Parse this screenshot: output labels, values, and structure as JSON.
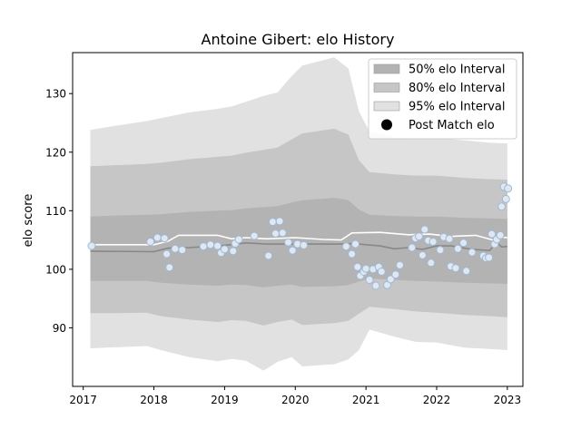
{
  "chart_data": {
    "type": "line",
    "title": "Antoine Gibert: elo History",
    "xlabel": "",
    "ylabel": "elo score",
    "xlim": [
      2016.85,
      2023.22
    ],
    "ylim": [
      80,
      137
    ],
    "x_ticks": [
      2017,
      2018,
      2019,
      2020,
      2021,
      2022,
      2023
    ],
    "x_tick_labels": [
      "2017",
      "2018",
      "2019",
      "2020",
      "2021",
      "2022",
      "2023"
    ],
    "y_ticks": [
      90,
      100,
      110,
      120,
      130
    ],
    "y_tick_labels": [
      "90",
      "100",
      "110",
      "120",
      "130"
    ],
    "grid": false,
    "legend_position": "top-right",
    "legend": [
      {
        "label": "50% elo Interval",
        "kind": "band",
        "color": "#b3b3b3"
      },
      {
        "label": "80% elo Interval",
        "kind": "band",
        "color": "#c6c6c6"
      },
      {
        "label": "95% elo Interval",
        "kind": "band",
        "color": "#e1e1e1"
      },
      {
        "label": "Post Match elo",
        "kind": "marker",
        "color": "#000000"
      }
    ],
    "colors": {
      "band50": "#b3b3b3",
      "band80": "#c6c6c6",
      "band95": "#e1e1e1",
      "mean_line": "#888888",
      "upper_line": "#ffffff",
      "marker_fill": "#dfe8f2",
      "marker_edge": "#9fb8d4"
    },
    "band95": [
      {
        "x": 2017.1,
        "lo": 86.5,
        "hi": 123.8
      },
      {
        "x": 2017.5,
        "lo": 86.7,
        "hi": 124.6
      },
      {
        "x": 2017.9,
        "lo": 86.9,
        "hi": 125.3
      },
      {
        "x": 2018.1,
        "lo": 86.2,
        "hi": 125.8
      },
      {
        "x": 2018.5,
        "lo": 85.0,
        "hi": 126.8
      },
      {
        "x": 2018.9,
        "lo": 84.3,
        "hi": 127.4
      },
      {
        "x": 2019.1,
        "lo": 84.7,
        "hi": 127.8
      },
      {
        "x": 2019.3,
        "lo": 84.4,
        "hi": 128.6
      },
      {
        "x": 2019.55,
        "lo": 82.7,
        "hi": 129.6
      },
      {
        "x": 2019.75,
        "lo": 84.2,
        "hi": 130.2
      },
      {
        "x": 2019.95,
        "lo": 85.0,
        "hi": 133.0
      },
      {
        "x": 2020.1,
        "lo": 83.4,
        "hi": 134.8
      },
      {
        "x": 2020.55,
        "lo": 83.8,
        "hi": 136.2
      },
      {
        "x": 2020.75,
        "lo": 84.6,
        "hi": 134.3
      },
      {
        "x": 2020.9,
        "lo": 86.2,
        "hi": 127.0
      },
      {
        "x": 2021.05,
        "lo": 89.7,
        "hi": 123.5
      },
      {
        "x": 2021.4,
        "lo": 88.5,
        "hi": 122.5
      },
      {
        "x": 2021.7,
        "lo": 87.6,
        "hi": 122.3
      },
      {
        "x": 2022.0,
        "lo": 87.5,
        "hi": 122.4
      },
      {
        "x": 2022.4,
        "lo": 86.6,
        "hi": 122.0
      },
      {
        "x": 2022.75,
        "lo": 86.4,
        "hi": 121.6
      },
      {
        "x": 2023.0,
        "lo": 86.2,
        "hi": 121.5
      }
    ],
    "band80": [
      {
        "x": 2017.1,
        "lo": 92.5,
        "hi": 117.6
      },
      {
        "x": 2017.5,
        "lo": 92.5,
        "hi": 117.8
      },
      {
        "x": 2017.9,
        "lo": 92.6,
        "hi": 118.0
      },
      {
        "x": 2018.1,
        "lo": 92.0,
        "hi": 118.2
      },
      {
        "x": 2018.5,
        "lo": 91.4,
        "hi": 118.8
      },
      {
        "x": 2018.9,
        "lo": 91.0,
        "hi": 119.2
      },
      {
        "x": 2019.1,
        "lo": 91.3,
        "hi": 119.4
      },
      {
        "x": 2019.3,
        "lo": 91.2,
        "hi": 119.9
      },
      {
        "x": 2019.55,
        "lo": 90.4,
        "hi": 120.4
      },
      {
        "x": 2019.75,
        "lo": 91.0,
        "hi": 120.8
      },
      {
        "x": 2019.95,
        "lo": 91.4,
        "hi": 122.2
      },
      {
        "x": 2020.1,
        "lo": 90.5,
        "hi": 123.2
      },
      {
        "x": 2020.55,
        "lo": 90.8,
        "hi": 124.0
      },
      {
        "x": 2020.75,
        "lo": 91.2,
        "hi": 123.0
      },
      {
        "x": 2020.9,
        "lo": 92.4,
        "hi": 118.6
      },
      {
        "x": 2021.05,
        "lo": 93.6,
        "hi": 116.6
      },
      {
        "x": 2021.4,
        "lo": 93.2,
        "hi": 116.2
      },
      {
        "x": 2021.7,
        "lo": 92.8,
        "hi": 116.0
      },
      {
        "x": 2022.0,
        "lo": 92.6,
        "hi": 116.0
      },
      {
        "x": 2022.4,
        "lo": 92.2,
        "hi": 115.6
      },
      {
        "x": 2022.75,
        "lo": 92.0,
        "hi": 115.4
      },
      {
        "x": 2023.0,
        "lo": 91.8,
        "hi": 115.3
      }
    ],
    "band50": [
      {
        "x": 2017.1,
        "lo": 98.0,
        "hi": 109.0
      },
      {
        "x": 2017.5,
        "lo": 98.0,
        "hi": 109.2
      },
      {
        "x": 2017.9,
        "lo": 98.0,
        "hi": 109.3
      },
      {
        "x": 2018.1,
        "lo": 97.7,
        "hi": 109.4
      },
      {
        "x": 2018.5,
        "lo": 97.4,
        "hi": 109.8
      },
      {
        "x": 2018.9,
        "lo": 97.2,
        "hi": 110.0
      },
      {
        "x": 2019.1,
        "lo": 97.4,
        "hi": 110.1
      },
      {
        "x": 2019.3,
        "lo": 97.3,
        "hi": 110.4
      },
      {
        "x": 2019.55,
        "lo": 96.9,
        "hi": 110.6
      },
      {
        "x": 2019.75,
        "lo": 97.2,
        "hi": 110.8
      },
      {
        "x": 2019.95,
        "lo": 97.4,
        "hi": 111.4
      },
      {
        "x": 2020.1,
        "lo": 97.0,
        "hi": 111.8
      },
      {
        "x": 2020.55,
        "lo": 97.1,
        "hi": 112.2
      },
      {
        "x": 2020.75,
        "lo": 97.3,
        "hi": 111.8
      },
      {
        "x": 2020.9,
        "lo": 97.9,
        "hi": 110.2
      },
      {
        "x": 2021.05,
        "lo": 98.4,
        "hi": 109.3
      },
      {
        "x": 2021.4,
        "lo": 98.2,
        "hi": 109.1
      },
      {
        "x": 2021.7,
        "lo": 98.0,
        "hi": 109.0
      },
      {
        "x": 2022.0,
        "lo": 97.9,
        "hi": 109.0
      },
      {
        "x": 2022.4,
        "lo": 97.7,
        "hi": 108.8
      },
      {
        "x": 2022.75,
        "lo": 97.6,
        "hi": 108.7
      },
      {
        "x": 2023.0,
        "lo": 97.5,
        "hi": 108.6
      }
    ],
    "mean_line": [
      {
        "x": 2017.1,
        "y": 103.1
      },
      {
        "x": 2018.0,
        "y": 103.0
      },
      {
        "x": 2018.2,
        "y": 103.6
      },
      {
        "x": 2018.5,
        "y": 103.7
      },
      {
        "x": 2019.0,
        "y": 104.1
      },
      {
        "x": 2019.3,
        "y": 104.5
      },
      {
        "x": 2019.6,
        "y": 104.3
      },
      {
        "x": 2020.0,
        "y": 104.3
      },
      {
        "x": 2020.3,
        "y": 104.3
      },
      {
        "x": 2020.6,
        "y": 104.3
      },
      {
        "x": 2020.85,
        "y": 104.4
      },
      {
        "x": 2021.0,
        "y": 104.2
      },
      {
        "x": 2021.2,
        "y": 104.0
      },
      {
        "x": 2021.4,
        "y": 103.5
      },
      {
        "x": 2021.6,
        "y": 103.7
      },
      {
        "x": 2021.8,
        "y": 103.4
      },
      {
        "x": 2022.0,
        "y": 104.0
      },
      {
        "x": 2022.2,
        "y": 104.0
      },
      {
        "x": 2022.5,
        "y": 103.4
      },
      {
        "x": 2022.75,
        "y": 103.2
      },
      {
        "x": 2022.85,
        "y": 104.6
      },
      {
        "x": 2022.92,
        "y": 103.8
      },
      {
        "x": 2023.0,
        "y": 103.9
      }
    ],
    "upper_line": [
      {
        "x": 2017.1,
        "y": 104.2
      },
      {
        "x": 2018.0,
        "y": 104.2
      },
      {
        "x": 2018.2,
        "y": 104.8
      },
      {
        "x": 2018.35,
        "y": 105.8
      },
      {
        "x": 2018.9,
        "y": 105.8
      },
      {
        "x": 2019.1,
        "y": 105.2
      },
      {
        "x": 2019.3,
        "y": 105.4
      },
      {
        "x": 2019.6,
        "y": 105.2
      },
      {
        "x": 2020.0,
        "y": 105.4
      },
      {
        "x": 2020.4,
        "y": 105.1
      },
      {
        "x": 2020.65,
        "y": 105.0
      },
      {
        "x": 2020.8,
        "y": 106.2
      },
      {
        "x": 2021.2,
        "y": 106.3
      },
      {
        "x": 2021.6,
        "y": 105.9
      },
      {
        "x": 2021.9,
        "y": 106.0
      },
      {
        "x": 2022.2,
        "y": 105.6
      },
      {
        "x": 2022.55,
        "y": 105.8
      },
      {
        "x": 2022.8,
        "y": 105.0
      },
      {
        "x": 2022.9,
        "y": 105.5
      },
      {
        "x": 2023.0,
        "y": 105.4
      }
    ],
    "points": [
      {
        "x": 2017.12,
        "y": 104.0
      },
      {
        "x": 2017.95,
        "y": 104.7
      },
      {
        "x": 2018.05,
        "y": 105.4
      },
      {
        "x": 2018.15,
        "y": 105.3
      },
      {
        "x": 2018.18,
        "y": 102.6
      },
      {
        "x": 2018.22,
        "y": 100.3
      },
      {
        "x": 2018.3,
        "y": 103.5
      },
      {
        "x": 2018.4,
        "y": 103.3
      },
      {
        "x": 2018.7,
        "y": 103.9
      },
      {
        "x": 2018.8,
        "y": 104.2
      },
      {
        "x": 2018.9,
        "y": 104.0
      },
      {
        "x": 2018.95,
        "y": 102.8
      },
      {
        "x": 2019.0,
        "y": 103.4
      },
      {
        "x": 2019.12,
        "y": 103.1
      },
      {
        "x": 2019.15,
        "y": 104.4
      },
      {
        "x": 2019.2,
        "y": 105.1
      },
      {
        "x": 2019.42,
        "y": 105.7
      },
      {
        "x": 2019.62,
        "y": 102.3
      },
      {
        "x": 2019.68,
        "y": 108.1
      },
      {
        "x": 2019.72,
        "y": 106.1
      },
      {
        "x": 2019.78,
        "y": 108.2
      },
      {
        "x": 2019.82,
        "y": 106.2
      },
      {
        "x": 2019.9,
        "y": 104.6
      },
      {
        "x": 2019.96,
        "y": 103.2
      },
      {
        "x": 2020.03,
        "y": 104.3
      },
      {
        "x": 2020.12,
        "y": 104.1
      },
      {
        "x": 2020.72,
        "y": 103.9
      },
      {
        "x": 2020.8,
        "y": 102.6
      },
      {
        "x": 2020.85,
        "y": 104.3
      },
      {
        "x": 2020.88,
        "y": 100.4
      },
      {
        "x": 2020.92,
        "y": 98.9
      },
      {
        "x": 2020.97,
        "y": 99.6
      },
      {
        "x": 2021.0,
        "y": 100.1
      },
      {
        "x": 2021.05,
        "y": 98.2
      },
      {
        "x": 2021.1,
        "y": 100.0
      },
      {
        "x": 2021.14,
        "y": 97.2
      },
      {
        "x": 2021.18,
        "y": 100.4
      },
      {
        "x": 2021.22,
        "y": 99.6
      },
      {
        "x": 2021.3,
        "y": 97.3
      },
      {
        "x": 2021.35,
        "y": 98.3
      },
      {
        "x": 2021.42,
        "y": 99.1
      },
      {
        "x": 2021.48,
        "y": 100.7
      },
      {
        "x": 2021.65,
        "y": 103.7
      },
      {
        "x": 2021.7,
        "y": 105.3
      },
      {
        "x": 2021.75,
        "y": 105.6
      },
      {
        "x": 2021.8,
        "y": 102.4
      },
      {
        "x": 2021.83,
        "y": 106.8
      },
      {
        "x": 2021.88,
        "y": 104.9
      },
      {
        "x": 2021.92,
        "y": 101.1
      },
      {
        "x": 2021.95,
        "y": 104.7
      },
      {
        "x": 2022.05,
        "y": 103.3
      },
      {
        "x": 2022.1,
        "y": 105.5
      },
      {
        "x": 2022.18,
        "y": 105.2
      },
      {
        "x": 2022.2,
        "y": 100.5
      },
      {
        "x": 2022.27,
        "y": 100.2
      },
      {
        "x": 2022.3,
        "y": 103.5
      },
      {
        "x": 2022.38,
        "y": 104.5
      },
      {
        "x": 2022.42,
        "y": 99.7
      },
      {
        "x": 2022.5,
        "y": 102.9
      },
      {
        "x": 2022.66,
        "y": 102.3
      },
      {
        "x": 2022.7,
        "y": 101.9
      },
      {
        "x": 2022.74,
        "y": 102.0
      },
      {
        "x": 2022.78,
        "y": 106.0
      },
      {
        "x": 2022.82,
        "y": 104.3
      },
      {
        "x": 2022.85,
        "y": 105.1
      },
      {
        "x": 2022.9,
        "y": 105.8
      },
      {
        "x": 2022.92,
        "y": 110.7
      },
      {
        "x": 2022.95,
        "y": 114.1
      },
      {
        "x": 2022.98,
        "y": 112.0
      },
      {
        "x": 2023.01,
        "y": 113.8
      }
    ]
  }
}
